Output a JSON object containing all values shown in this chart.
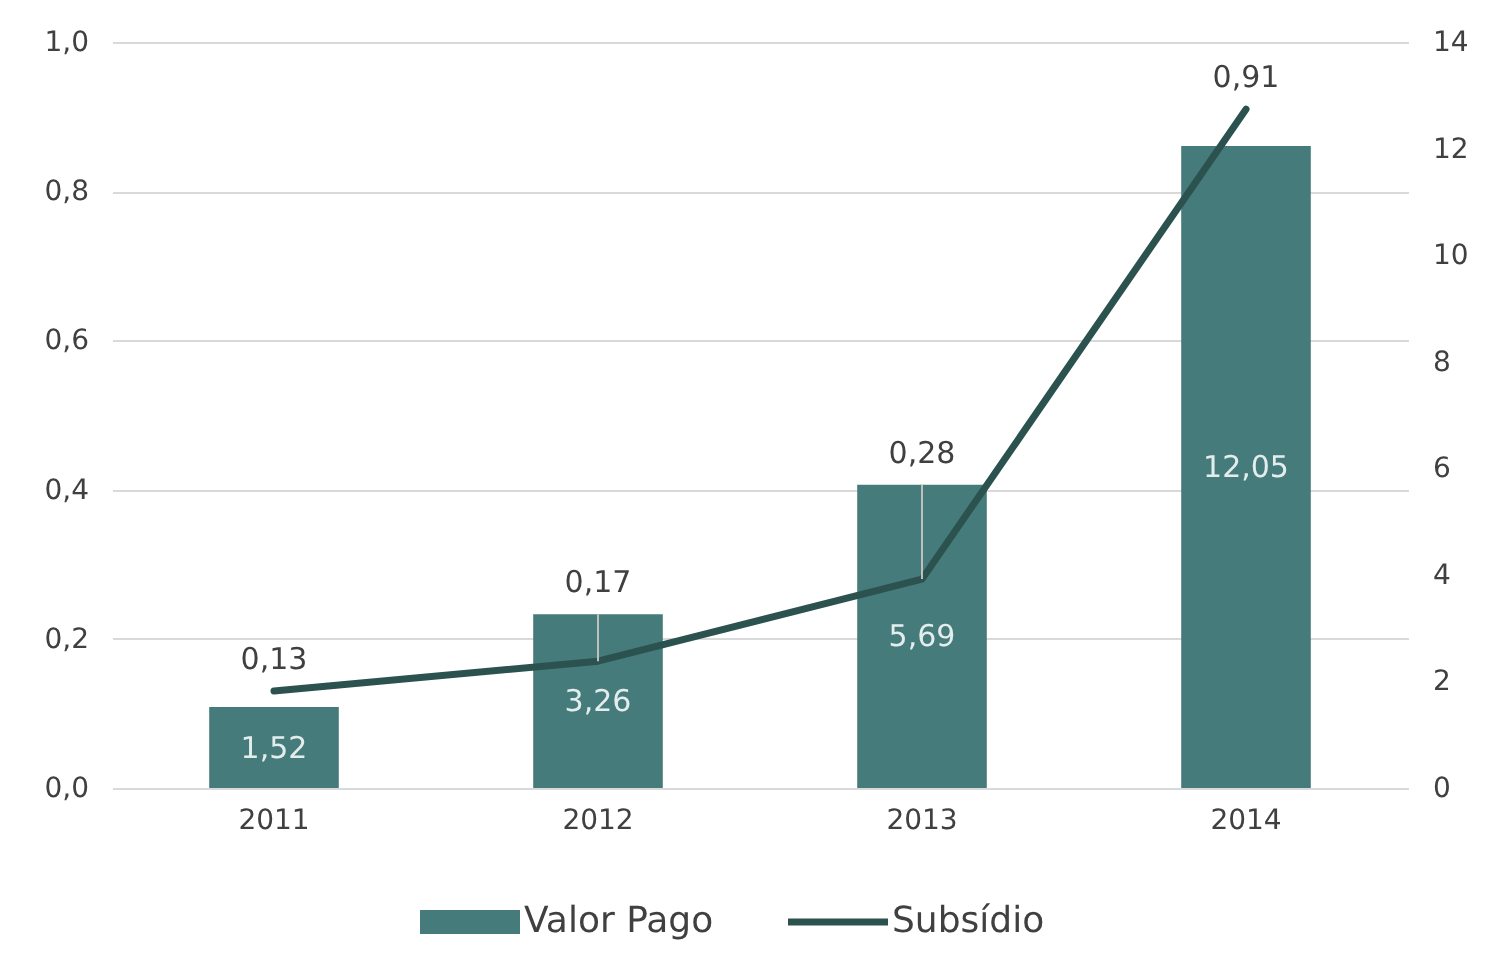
{
  "chart_data": {
    "type": "bar",
    "categories": [
      "2011",
      "2012",
      "2013",
      "2014"
    ],
    "series": [
      {
        "name": "Valor Pago",
        "axis": "y2",
        "color": "#467b7b",
        "values": [
          1.52,
          3.26,
          5.69,
          12.05
        ],
        "value_labels": [
          "1,52",
          "3,26",
          "5,69",
          "12,05"
        ]
      },
      {
        "name": "Subsídio",
        "type": "line",
        "axis": "y",
        "color": "#2b524f",
        "values": [
          0.13,
          0.17,
          0.28,
          0.91
        ],
        "value_labels": [
          "0,13",
          "0,17",
          "0,28",
          "0,91"
        ]
      }
    ],
    "ylim": [
      0,
      1
    ],
    "yticks": [
      {
        "value": 0,
        "label": "0,0"
      },
      {
        "value": 0.2,
        "label": "0,2"
      },
      {
        "value": 0.4,
        "label": "0,4"
      },
      {
        "value": 0.6,
        "label": "0,6"
      },
      {
        "value": 0.8,
        "label": "0,8"
      },
      {
        "value": 1,
        "label": "1,0"
      }
    ],
    "y2lim": [
      0,
      14
    ],
    "y2ticks": [
      0,
      2,
      4,
      6,
      8,
      10,
      12,
      14
    ],
    "grid": "y",
    "legend": "bottom"
  }
}
